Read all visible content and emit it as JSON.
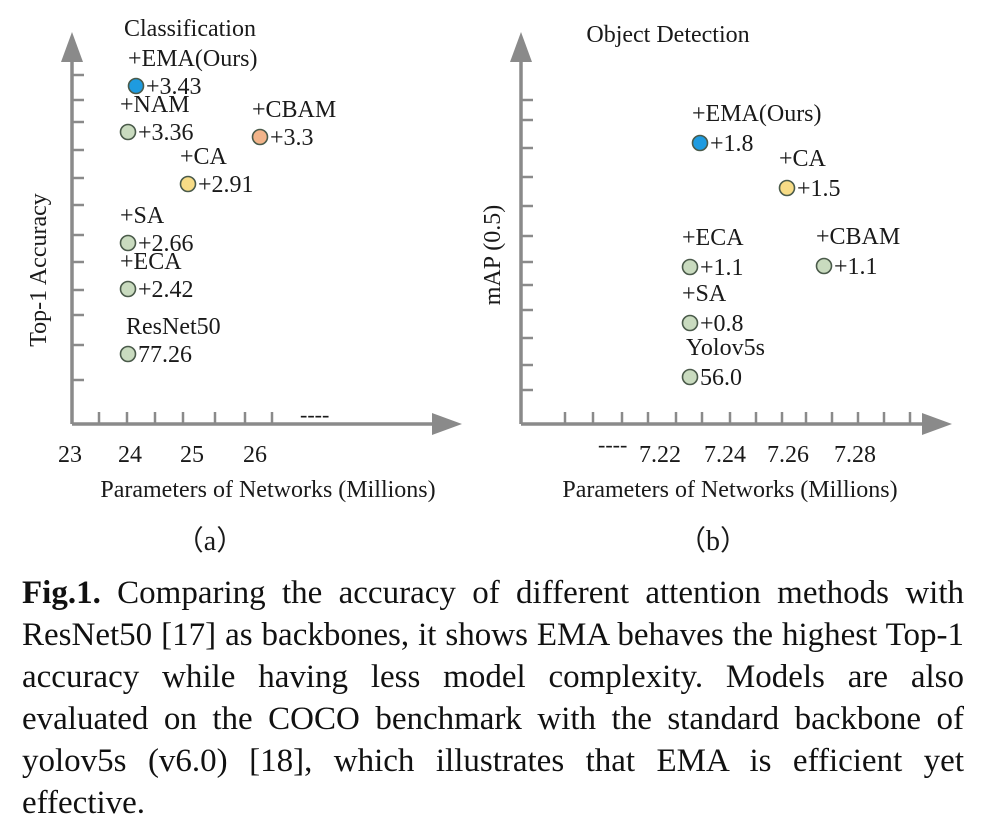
{
  "chart_data": [
    {
      "type": "scatter",
      "title": "Classification",
      "ylabel": "Top-1 Accuracy",
      "xlabel": "Parameters of Networks (Millions)",
      "x_ticks": [
        "23",
        "24",
        "25",
        "26"
      ],
      "x_break": "----",
      "sublabel": "（a）",
      "xlim": [
        22.7,
        26.9
      ],
      "ylim": [
        0,
        3.8
      ],
      "points": [
        {
          "name": "+EMA(Ours)",
          "value": "+3.43",
          "x": 24.1,
          "y": 3.43,
          "color": "#1e9be0"
        },
        {
          "name": "+NAM",
          "value": "+3.36",
          "x": 24.0,
          "y": 3.36,
          "color": "#c9dbbf"
        },
        {
          "name": "+CBAM",
          "value": "+3.3",
          "x": 26.1,
          "y": 3.3,
          "color": "#f2b48a"
        },
        {
          "name": "+CA",
          "value": "+2.91",
          "x": 25.0,
          "y": 2.91,
          "color": "#f7dc86"
        },
        {
          "name": "+SA",
          "value": "+2.66",
          "x": 24.0,
          "y": 2.66,
          "color": "#c9dbbf"
        },
        {
          "name": "+ECA",
          "value": "+2.42",
          "x": 24.0,
          "y": 2.42,
          "color": "#c9dbbf"
        },
        {
          "name": "ResNet50",
          "value": "77.26",
          "x": 24.0,
          "y": 2.05,
          "color": "#c9dbbf"
        }
      ]
    },
    {
      "type": "scatter",
      "title": "Object Detection",
      "ylabel": "mAP (0.5)",
      "xlabel": "Parameters of Networks (Millions)",
      "x_ticks": [
        "7.22",
        "7.24",
        "7.26",
        "7.28"
      ],
      "x_break": "----",
      "sublabel": "（b）",
      "xlim": [
        7.198,
        7.292
      ],
      "ylim": [
        0,
        2.2
      ],
      "points": [
        {
          "name": "+EMA(Ours)",
          "value": "+1.8",
          "x": 7.233,
          "y": 1.8,
          "color": "#1e9be0"
        },
        {
          "name": "+CA",
          "value": "+1.5",
          "x": 7.26,
          "y": 1.5,
          "color": "#f7dc86"
        },
        {
          "name": "+ECA",
          "value": "+1.1",
          "x": 7.23,
          "y": 1.1,
          "color": "#c9dbbf"
        },
        {
          "name": "+CBAM",
          "value": "+1.1",
          "x": 7.27,
          "y": 1.1,
          "color": "#c9dbbf"
        },
        {
          "name": "+SA",
          "value": "+0.8",
          "x": 7.23,
          "y": 0.8,
          "color": "#c9dbbf"
        },
        {
          "name": "Yolov5s",
          "value": "56.0",
          "x": 7.23,
          "y": 0.5,
          "color": "#c9dbbf"
        }
      ]
    }
  ],
  "caption": {
    "label": "Fig.1.",
    "text": "Comparing the accuracy of different attention methods with ResNet50 [17] as backbones, it shows EMA behaves the highest Top-1 accuracy while having less model complexity. Models are also evaluated on the COCO benchmark with the standard backbone of yolov5s (v6.0) [18], which illustrates that EMA is efficient yet effective."
  }
}
